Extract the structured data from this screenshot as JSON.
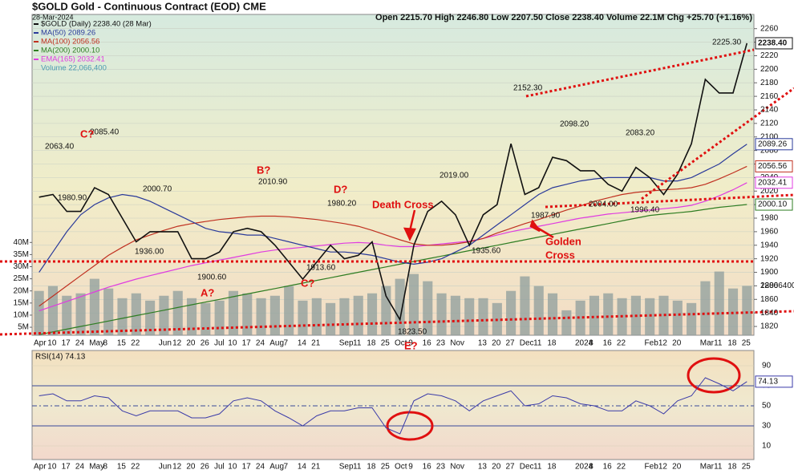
{
  "chart_data": {
    "type": "line",
    "title": "$GOLD Gold - Continuous Contract (EOD) CME",
    "date": "28-Mar-2024",
    "quote": "Open 2215.70 High 2246.80 Low 2207.50 Close 2238.40 Volume 22.1M Chg +25.70 (+1.16%)",
    "categories": [
      "Apr",
      "10",
      "17",
      "24",
      "May",
      "8",
      "15",
      "22",
      null,
      "Jun",
      "12",
      "20",
      "26",
      "Jul",
      "10",
      "17",
      "24",
      "Aug",
      "7",
      "14",
      "21",
      null,
      "Sep",
      "11",
      "18",
      "25",
      "Oct",
      "9",
      "16",
      "23",
      "Nov",
      null,
      "13",
      "20",
      "27",
      "Dec",
      "11",
      "18",
      null,
      "2024",
      "8",
      "16",
      "22",
      null,
      "Feb",
      "12",
      "20",
      null,
      "Mar",
      "11",
      "18",
      "25"
    ],
    "ylim": [
      1807,
      2281
    ],
    "yticks": [
      1820,
      1840,
      1860,
      1880,
      1900,
      1920,
      1940,
      1960,
      1980,
      2000,
      2020,
      2040,
      2060,
      2080,
      2100,
      2120,
      2140,
      2160,
      2180,
      2200,
      2220,
      2240,
      2260
    ],
    "grid": true,
    "series": [
      {
        "name": "$GOLD (Daily) 2238.40 (28 Mar)",
        "color": "#111111",
        "last_label": "2238.40",
        "values": [
          2011,
          2015,
          1990,
          1990,
          2025,
          2015,
          1980,
          1945,
          1960,
          1960,
          1960,
          1920,
          1920,
          1930,
          1960,
          1965,
          1960,
          1940,
          1915,
          1890,
          1915,
          1940,
          1920,
          1925,
          1945,
          1865,
          1830,
          1940,
          1990,
          2005,
          1985,
          1940,
          1985,
          2000,
          2090,
          2015,
          2025,
          2070,
          2065,
          2050,
          2050,
          2030,
          2020,
          2055,
          2040,
          2015,
          2045,
          2090,
          2185,
          2165,
          2165,
          2238.4
        ]
      },
      {
        "name": "MA(50) 2089.26",
        "color": "#2a3a9a",
        "last_label": "2089.26",
        "values": [
          1900,
          1930,
          1960,
          1985,
          2000,
          2010,
          2015,
          2012,
          2005,
          1995,
          1985,
          1975,
          1965,
          1960,
          1958,
          1955,
          1955,
          1950,
          1945,
          1940,
          1935,
          1930,
          1930,
          1928,
          1925,
          1920,
          1915,
          1912,
          1915,
          1920,
          1930,
          1940,
          1955,
          1970,
          1985,
          2000,
          2015,
          2025,
          2030,
          2035,
          2038,
          2040,
          2040,
          2040,
          2040,
          2035,
          2035,
          2040,
          2050,
          2060,
          2075,
          2089.26
        ]
      },
      {
        "name": "MA(100) 2056.56",
        "color": "#c03020",
        "last_label": "2056.56",
        "values": [
          1850,
          1865,
          1880,
          1895,
          1910,
          1925,
          1937,
          1948,
          1955,
          1962,
          1968,
          1972,
          1975,
          1978,
          1980,
          1982,
          1983,
          1983,
          1982,
          1980,
          1978,
          1975,
          1972,
          1968,
          1962,
          1955,
          1948,
          1942,
          1940,
          1940,
          1942,
          1945,
          1950,
          1958,
          1965,
          1972,
          1978,
          1985,
          1992,
          1998,
          2005,
          2010,
          2015,
          2018,
          2020,
          2022,
          2023,
          2025,
          2030,
          2038,
          2047,
          2056.56
        ]
      },
      {
        "name": "MA(200) 2000.10",
        "color": "#2e7d22",
        "last_label": "2000.10",
        "values": [
          1808,
          1812,
          1816,
          1820,
          1824,
          1828,
          1832,
          1836,
          1840,
          1844,
          1848,
          1852,
          1856,
          1860,
          1864,
          1868,
          1872,
          1876,
          1880,
          1884,
          1888,
          1892,
          1896,
          1900,
          1904,
          1908,
          1912,
          1916,
          1920,
          1924,
          1928,
          1932,
          1936,
          1940,
          1944,
          1948,
          1952,
          1956,
          1960,
          1964,
          1968,
          1972,
          1976,
          1980,
          1984,
          1986,
          1988,
          1990,
          1993,
          1996,
          1998,
          2000.1
        ]
      },
      {
        "name": "EMA(165) 2032.41",
        "color": "#e03ce0",
        "last_label": "2032.41",
        "values": [
          1843,
          1850,
          1857,
          1864,
          1871,
          1878,
          1884,
          1890,
          1895,
          1900,
          1905,
          1910,
          1914,
          1918,
          1922,
          1926,
          1930,
          1933,
          1935,
          1937,
          1939,
          1941,
          1943,
          1944,
          1943,
          1940,
          1938,
          1938,
          1940,
          1942,
          1944,
          1946,
          1950,
          1955,
          1960,
          1964,
          1968,
          1972,
          1976,
          1980,
          1983,
          1986,
          1988,
          1990,
          1992,
          1994,
          1996,
          1999,
          2005,
          2013,
          2022,
          2032.41
        ]
      }
    ],
    "volume": {
      "name": "Volume 22,066,400",
      "color": "#8e9e9c",
      "last_label": "22066400",
      "ylim": [
        1.7,
        134.1
      ],
      "yticks": [
        {
          "value": 5,
          "label": "5M"
        },
        {
          "value": 10,
          "label": "10M"
        },
        {
          "value": 15,
          "label": "15M"
        },
        {
          "value": 20,
          "label": "20M"
        },
        {
          "value": 25,
          "label": "25M"
        },
        {
          "value": 30,
          "label": "30M"
        },
        {
          "value": 35,
          "label": "35M"
        },
        {
          "value": 40,
          "label": "40M"
        }
      ],
      "values": [
        20,
        22,
        18,
        19,
        25,
        21,
        17,
        19,
        16,
        18,
        20,
        17,
        15,
        16,
        20,
        19,
        17,
        18,
        22,
        16,
        17,
        15,
        17,
        18,
        19,
        22,
        25,
        27,
        24,
        19,
        18,
        17,
        17,
        15,
        20,
        26,
        22,
        19,
        12,
        16,
        18,
        19,
        17,
        18,
        17,
        18,
        16,
        15,
        24,
        28,
        21,
        22.0664
      ]
    },
    "annotations": [
      "2085.40",
      "C?",
      "2063.40",
      "1980.90",
      "2000.70",
      "1936.00",
      "B?",
      "2010.90",
      "A?",
      "1900.60",
      "D?",
      "1980.20",
      "1913.60",
      "C?",
      "Death Cross",
      "2019.00",
      "1935.60",
      "1823.50",
      "E?",
      "2152.30",
      "1987.90",
      "Golden",
      "Cross",
      "2098.20",
      "2004.00",
      "2083.20",
      "1996.40",
      "2225.30"
    ],
    "rsi": {
      "name": "RSI(14) 74.13",
      "color": "#3a3aa8",
      "last_label": "74.13",
      "ylim": [
        -3.6,
        105.2
      ],
      "yticks": [
        10,
        30,
        50,
        70,
        90
      ],
      "values": [
        60,
        62,
        55,
        55,
        60,
        58,
        45,
        40,
        45,
        45,
        45,
        38,
        38,
        42,
        55,
        58,
        55,
        45,
        38,
        30,
        40,
        45,
        45,
        48,
        48,
        28,
        22,
        55,
        62,
        60,
        55,
        45,
        55,
        60,
        65,
        50,
        52,
        60,
        58,
        52,
        50,
        45,
        45,
        55,
        50,
        42,
        55,
        60,
        78,
        72,
        65,
        74.13
      ]
    }
  }
}
